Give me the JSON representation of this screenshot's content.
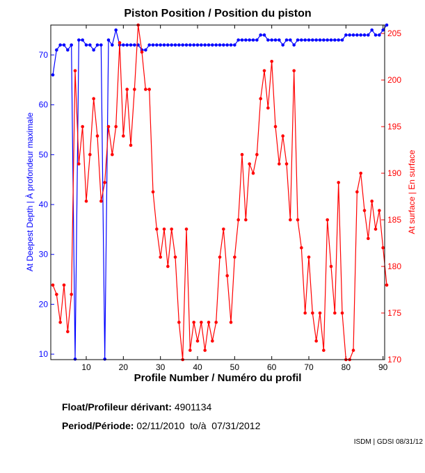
{
  "chart_data": {
    "type": "line",
    "title": "Piston Position / Position du piston",
    "xlabel": "Profile Number / Numéro du profil",
    "ylabel_left": "At Deepest Depth | À profondeur maximale",
    "ylabel_right": "At surface | En surface",
    "xlim": [
      1,
      91
    ],
    "ylim_left": [
      8.9,
      76
    ],
    "ylim_right": [
      170,
      205.9
    ],
    "x_ticks": [
      10,
      20,
      30,
      40,
      50,
      60,
      70,
      80,
      90
    ],
    "y_left_ticks": [
      10,
      20,
      30,
      40,
      50,
      60,
      70
    ],
    "y_right_ticks": [
      170,
      175,
      180,
      185,
      190,
      195,
      200,
      205
    ],
    "grid": false,
    "colors": {
      "deepest": "#0000ff",
      "surface": "#ff0000"
    },
    "series": [
      {
        "name": "At Deepest Depth",
        "axis": "left",
        "values": [
          66,
          71,
          72,
          72,
          71,
          72,
          9,
          73,
          73,
          72,
          72,
          71,
          72,
          72,
          9,
          73,
          72,
          75,
          72,
          72,
          72,
          72,
          72,
          72,
          71,
          71,
          72,
          72,
          72,
          72,
          72,
          72,
          72,
          72,
          72,
          72,
          72,
          72,
          72,
          72,
          72,
          72,
          72,
          72,
          72,
          72,
          72,
          72,
          72,
          72,
          73,
          73,
          73,
          73,
          73,
          73,
          74,
          74,
          73,
          73,
          73,
          73,
          72,
          73,
          73,
          72,
          73,
          73,
          73,
          73,
          73,
          73,
          73,
          73,
          73,
          73,
          73,
          73,
          73,
          74,
          74,
          74,
          74,
          74,
          74,
          74,
          75,
          74,
          74,
          75,
          76
        ]
      },
      {
        "name": "At surface",
        "axis": "right",
        "values": [
          178,
          177,
          174,
          178,
          173,
          177,
          201,
          191,
          195,
          187,
          192,
          198,
          194,
          187,
          189,
          195,
          192,
          195,
          204,
          194,
          199,
          193,
          199,
          205.9,
          203,
          199,
          199,
          188,
          184,
          181,
          184,
          180,
          184,
          181,
          174,
          170,
          184,
          171,
          174,
          172,
          174,
          171,
          174,
          172,
          174,
          181,
          184,
          179,
          174,
          181,
          185,
          192,
          185,
          191,
          190,
          192,
          198,
          201,
          197,
          202,
          195,
          191,
          194,
          191,
          185,
          201,
          185,
          182,
          175,
          181,
          175,
          172,
          175,
          171,
          185,
          180,
          175,
          189,
          175,
          170,
          170,
          171,
          188,
          190,
          186,
          183,
          187,
          184,
          186,
          182,
          178
        ]
      }
    ]
  },
  "footer": {
    "float_label": "Float/Profileur dérivant:",
    "float_value": "4901134",
    "period_label": "Period/Période:",
    "period_value": "02/11/2010  to/à  07/31/2012",
    "credit": "ISDM | GDSI 08/31/12"
  }
}
